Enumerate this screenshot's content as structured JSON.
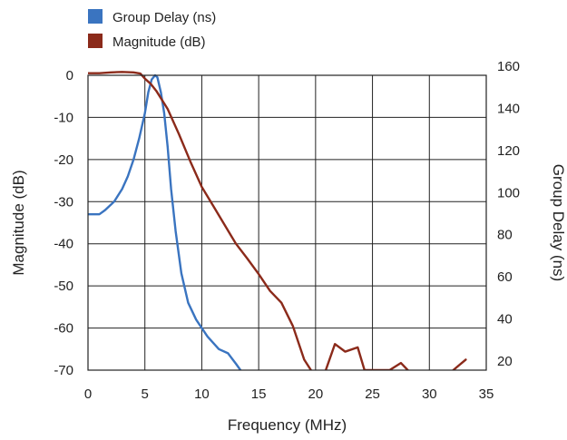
{
  "chart_data": {
    "type": "line",
    "xlabel": "Frequency (MHz)",
    "ylabel_left": "Magnitude (dB)",
    "ylabel_right": "Group Delay (ns)",
    "x_range": [
      0,
      35
    ],
    "y_left_range": [
      -70,
      0
    ],
    "y_right_range": [
      20,
      160
    ],
    "x_ticks": [
      "0",
      "5",
      "10",
      "15",
      "20",
      "25",
      "30",
      "35"
    ],
    "y_left_ticks": [
      "0",
      "-10",
      "-20",
      "-30",
      "-40",
      "-50",
      "-60",
      "-70"
    ],
    "y_right_ticks": [
      "160",
      "140",
      "120",
      "100",
      "80",
      "60",
      "40",
      "20"
    ],
    "grid": true,
    "legend_position": "top-left",
    "series": [
      {
        "name": "Group Delay (ns)",
        "axis": "right",
        "color": "#3a74c0",
        "segments": [
          [
            [
              0,
              94
            ],
            [
              1,
              94
            ],
            [
              1.5,
              96
            ],
            [
              2.3,
              100
            ],
            [
              3.0,
              106
            ],
            [
              3.5,
              112
            ],
            [
              4.0,
              120
            ],
            [
              4.5,
              130
            ],
            [
              5.0,
              142
            ],
            [
              5.3,
              152
            ],
            [
              5.6,
              158
            ],
            [
              5.9,
              160
            ],
            [
              6.1,
              159
            ],
            [
              6.4,
              152
            ],
            [
              6.7,
              142
            ],
            [
              7.0,
              126
            ],
            [
              7.3,
              106
            ],
            [
              7.7,
              86
            ],
            [
              8.2,
              66
            ],
            [
              8.8,
              52
            ],
            [
              9.5,
              44
            ],
            [
              10.5,
              36
            ],
            [
              11.5,
              30
            ],
            [
              12.3,
              28
            ],
            [
              13.0,
              23
            ],
            [
              13.4,
              20
            ]
          ]
        ]
      },
      {
        "name": "Magnitude (dB)",
        "axis": "left",
        "color": "#8b2a1a",
        "segments": [
          [
            [
              0,
              0.5
            ],
            [
              1,
              0.5
            ],
            [
              2,
              0.7
            ],
            [
              3,
              0.8
            ],
            [
              4,
              0.7
            ],
            [
              4.6,
              0.4
            ],
            [
              5.0,
              -0.8
            ],
            [
              5.5,
              -2
            ],
            [
              6.0,
              -3.7
            ],
            [
              7,
              -8
            ],
            [
              8,
              -14
            ],
            [
              9,
              -20.5
            ],
            [
              10,
              -26.5
            ],
            [
              11,
              -31
            ],
            [
              12,
              -35.5
            ],
            [
              13,
              -40
            ],
            [
              14,
              -43.5
            ],
            [
              15,
              -47.2
            ],
            [
              16,
              -51.2
            ],
            [
              17,
              -54
            ],
            [
              18,
              -59.5
            ],
            [
              19,
              -67.5
            ],
            [
              19.6,
              -70
            ]
          ],
          [
            [
              20.9,
              -70
            ],
            [
              21.7,
              -63.8
            ],
            [
              22.6,
              -65.6
            ],
            [
              23.7,
              -64.6
            ],
            [
              24.3,
              -70
            ],
            [
              25.1,
              -70
            ],
            [
              26.5,
              -70
            ],
            [
              27.5,
              -68.3
            ],
            [
              28.1,
              -70
            ]
          ],
          [
            [
              32.1,
              -70
            ],
            [
              33.2,
              -67.5
            ]
          ]
        ]
      }
    ]
  }
}
